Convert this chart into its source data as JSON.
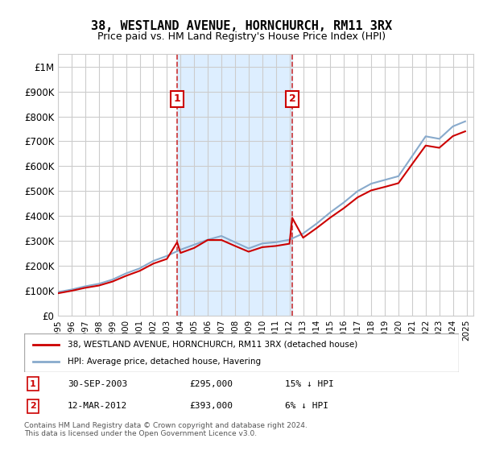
{
  "title": "38, WESTLAND AVENUE, HORNCHURCH, RM11 3RX",
  "subtitle": "Price paid vs. HM Land Registry's House Price Index (HPI)",
  "legend_line1": "38, WESTLAND AVENUE, HORNCHURCH, RM11 3RX (detached house)",
  "legend_line2": "HPI: Average price, detached house, Havering",
  "footnote": "Contains HM Land Registry data © Crown copyright and database right 2024.\nThis data is licensed under the Open Government Licence v3.0.",
  "sale1_date": "30-SEP-2003",
  "sale1_price": 295000,
  "sale1_label": "15% ↓ HPI",
  "sale2_date": "12-MAR-2012",
  "sale2_price": 393000,
  "sale2_label": "6% ↓ HPI",
  "sale1_x": 2003.75,
  "sale2_x": 2012.2,
  "background_color": "#ffffff",
  "plot_bg_color": "#ffffff",
  "grid_color": "#cccccc",
  "red_line_color": "#cc0000",
  "blue_line_color": "#aaccee",
  "blue_line_color2": "#88aacc",
  "marker_box_color": "#cc0000",
  "dashed_line_color": "#cc3333",
  "shade_color": "#ddeeff",
  "ylim": [
    0,
    1050000
  ],
  "xlim": [
    1995,
    2025.5
  ],
  "yticks": [
    0,
    100000,
    200000,
    300000,
    400000,
    500000,
    600000,
    700000,
    800000,
    900000,
    1000000
  ],
  "ytick_labels": [
    "£0",
    "£100K",
    "£200K",
    "£300K",
    "£400K",
    "£500K",
    "£600K",
    "£700K",
    "£800K",
    "£900K",
    "£1M"
  ],
  "xticks": [
    1995,
    1996,
    1997,
    1998,
    1999,
    2000,
    2001,
    2002,
    2003,
    2004,
    2005,
    2006,
    2007,
    2008,
    2009,
    2010,
    2011,
    2012,
    2013,
    2014,
    2015,
    2016,
    2017,
    2018,
    2019,
    2020,
    2021,
    2022,
    2023,
    2024,
    2025
  ],
  "hpi_x": [
    1995,
    1996,
    1997,
    1998,
    1999,
    2000,
    2001,
    2002,
    2003,
    2004,
    2005,
    2006,
    2007,
    2008,
    2009,
    2010,
    2011,
    2012,
    2013,
    2014,
    2015,
    2016,
    2017,
    2018,
    2019,
    2020,
    2021,
    2022,
    2023,
    2024,
    2024.9
  ],
  "hpi_y": [
    95000,
    105000,
    118000,
    128000,
    145000,
    170000,
    190000,
    220000,
    240000,
    265000,
    285000,
    305000,
    320000,
    295000,
    270000,
    290000,
    295000,
    305000,
    330000,
    370000,
    415000,
    455000,
    500000,
    530000,
    545000,
    560000,
    640000,
    720000,
    710000,
    760000,
    780000
  ],
  "red_x": [
    1995,
    1996,
    1997,
    1998,
    1999,
    2000,
    2001,
    2002,
    2003,
    2003.75,
    2004,
    2005,
    2006,
    2007,
    2008,
    2009,
    2010,
    2011,
    2012,
    2012.2,
    2013,
    2014,
    2015,
    2016,
    2017,
    2018,
    2019,
    2020,
    2021,
    2022,
    2023,
    2024,
    2024.9
  ],
  "red_y": [
    90000,
    100000,
    112000,
    121000,
    137000,
    160000,
    180000,
    209000,
    228000,
    295000,
    252000,
    272000,
    304000,
    304000,
    280000,
    257000,
    275000,
    280000,
    289000,
    393000,
    313000,
    352000,
    394000,
    432000,
    475000,
    503000,
    517000,
    532000,
    608000,
    683000,
    674000,
    721000,
    740000
  ]
}
